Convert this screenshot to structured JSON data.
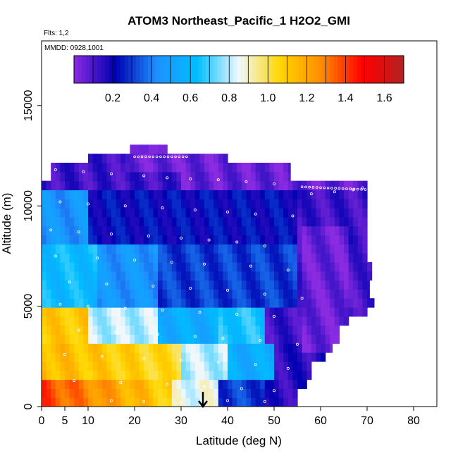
{
  "chart_data": {
    "type": "heatmap",
    "title": "ATOM3 Northeast_Pacific_1 H2O2_GMI",
    "annotations": [
      "Flts: 1,2",
      "MMDD: 0928,1001"
    ],
    "xlabel": "Latitude (deg N)",
    "ylabel": "Altitude (m)",
    "xlim": [
      0,
      85
    ],
    "ylim": [
      0,
      17500
    ],
    "x_ticks": [
      0,
      5,
      10,
      20,
      30,
      40,
      50,
      60,
      70,
      80
    ],
    "y_ticks": [
      0,
      5000,
      10000,
      15000
    ],
    "y_tick_labels": [
      "0",
      "5000",
      "10000",
      "15000"
    ],
    "colorbar": {
      "range": [
        0,
        1.7
      ],
      "ticks": [
        0.2,
        0.4,
        0.6,
        0.8,
        1.0,
        1.2,
        1.4,
        1.6
      ],
      "tick_labels": [
        "0.2",
        "0.4",
        "0.6",
        "0.8",
        "1.0",
        "1.2",
        "1.4",
        "1.6"
      ],
      "colors": [
        "#8a2be2",
        "#0000b0",
        "#1e90ff",
        "#00bfff",
        "#f0f8ff",
        "#ffd700",
        "#ff8c00",
        "#ff0000",
        "#b22222"
      ]
    },
    "marker": {
      "x": 35,
      "label": "arrow"
    },
    "grid": false,
    "legend": "colorbar-top"
  }
}
